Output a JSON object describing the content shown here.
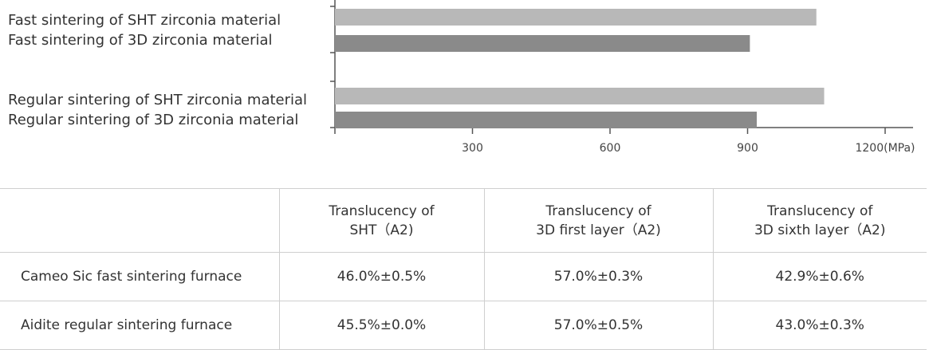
{
  "chart_data": {
    "type": "bar",
    "orientation": "horizontal",
    "groups": [
      {
        "bars": [
          {
            "name": "Fast sintering of SHT zirconia material",
            "value": 1050,
            "color": "#b8b8b8"
          },
          {
            "name": "Fast sintering of 3D zirconia material",
            "value": 905,
            "color": "#8a8a8a"
          }
        ]
      },
      {
        "bars": [
          {
            "name": "Regular sintering of SHT zirconia material",
            "value": 1067,
            "color": "#b8b8b8"
          },
          {
            "name": "Regular sintering of 3D zirconia material",
            "value": 920,
            "color": "#8a8a8a"
          }
        ]
      }
    ],
    "xticks": [
      {
        "value": 300,
        "label": "300"
      },
      {
        "value": 600,
        "label": "600"
      },
      {
        "value": 900,
        "label": "900"
      },
      {
        "value": 1200,
        "label": "1200(MPa)"
      }
    ],
    "xlim": [
      0,
      1260
    ],
    "grid": false
  },
  "table": {
    "header": [
      "",
      [
        "Translucency of",
        "SHT（A2)"
      ],
      [
        "Translucency of",
        "3D first layer（A2)"
      ],
      [
        "Translucency of",
        "3D sixth layer（A2)"
      ]
    ],
    "rows": [
      {
        "label": "Cameo Sic fast sintering furnace",
        "cells": [
          "46.0%±0.5%",
          "57.0%±0.3%",
          "42.9%±0.6%"
        ]
      },
      {
        "label": "Aidite regular sintering furnace",
        "cells": [
          "45.5%±0.0%",
          "57.0%±0.5%",
          "43.0%±0.3%"
        ]
      }
    ]
  }
}
